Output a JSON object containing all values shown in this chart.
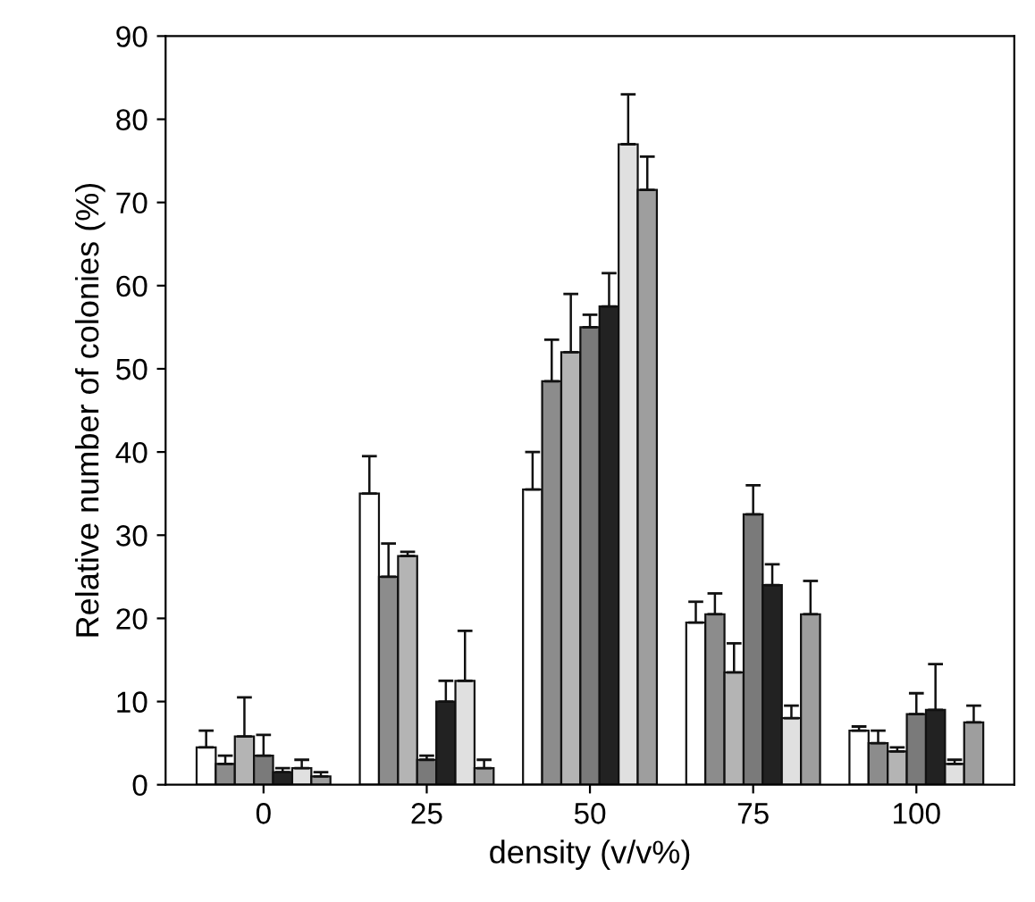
{
  "chart_data": {
    "type": "bar",
    "xlabel": "density (v/v%)",
    "ylabel": "Relative number of colonies (%)",
    "categories": [
      "0",
      "25",
      "50",
      "75",
      "100"
    ],
    "ylim": [
      0,
      90
    ],
    "yticks": [
      0,
      10,
      20,
      30,
      40,
      50,
      60,
      70,
      80,
      90
    ],
    "grid": false,
    "legend": false,
    "series": [
      {
        "color": "#ffffff",
        "values": [
          4.5,
          35,
          35.5,
          19.5,
          6.5
        ],
        "errors": [
          [
            4.5,
            6.5
          ],
          [
            35,
            39.5
          ],
          [
            35.5,
            40
          ],
          [
            19.5,
            22
          ],
          [
            6.5,
            7
          ]
        ]
      },
      {
        "color": "#8c8c8c",
        "values": [
          2.5,
          25,
          48.5,
          20.5,
          5
        ],
        "errors": [
          [
            2.5,
            3.5
          ],
          [
            25,
            29
          ],
          [
            48.5,
            53.5
          ],
          [
            20.5,
            23
          ],
          [
            5,
            6.5
          ]
        ]
      },
      {
        "color": "#b4b4b4",
        "values": [
          5.8,
          27.5,
          52,
          13.5,
          4
        ],
        "errors": [
          [
            5.8,
            10.5
          ],
          [
            27.5,
            28
          ],
          [
            52,
            59
          ],
          [
            13.5,
            17
          ],
          [
            4,
            4.5
          ]
        ]
      },
      {
        "color": "#7a7a7a",
        "values": [
          3.5,
          3,
          55,
          32.5,
          8.5
        ],
        "errors": [
          [
            3.5,
            6
          ],
          [
            3,
            3.5
          ],
          [
            55,
            56.5
          ],
          [
            32.5,
            36
          ],
          [
            8.5,
            11
          ]
        ]
      },
      {
        "color": "#222222",
        "values": [
          1.5,
          10,
          57.5,
          24,
          9
        ],
        "errors": [
          [
            1.5,
            2
          ],
          [
            10,
            12.5
          ],
          [
            57.5,
            61.5
          ],
          [
            24,
            26.5
          ],
          [
            9,
            14.5
          ]
        ]
      },
      {
        "color": "#e0e0e0",
        "values": [
          2,
          12.5,
          77,
          8,
          2.5
        ],
        "errors": [
          [
            2,
            3
          ],
          [
            12.5,
            18.5
          ],
          [
            77,
            83
          ],
          [
            8,
            9.5
          ],
          [
            2.5,
            3
          ]
        ]
      },
      {
        "color": "#9e9e9e",
        "values": [
          1,
          2,
          71.5,
          20.5,
          7.5
        ],
        "errors": [
          [
            1,
            1.5
          ],
          [
            2,
            3
          ],
          [
            71.5,
            75.5
          ],
          [
            20.5,
            24.5
          ],
          [
            7.5,
            9.5
          ]
        ]
      }
    ]
  }
}
